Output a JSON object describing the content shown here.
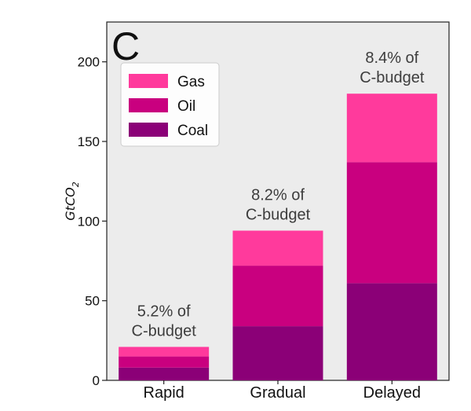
{
  "panel_letter": "C",
  "chart_data": {
    "type": "bar",
    "stacked": true,
    "categories": [
      "Rapid",
      "Gradual",
      "Delayed"
    ],
    "series": [
      {
        "name": "Coal",
        "values": [
          8,
          34,
          61
        ],
        "color": "#8b0077"
      },
      {
        "name": "Oil",
        "values": [
          7,
          38,
          76
        ],
        "color": "#c9007f"
      },
      {
        "name": "Gas",
        "values": [
          6,
          22,
          43
        ],
        "color": "#ff3a9c"
      }
    ],
    "annotations": [
      {
        "category": "Rapid",
        "lines": [
          "5.2% of",
          "C-budget"
        ]
      },
      {
        "category": "Gradual",
        "lines": [
          "8.2% of",
          "C-budget"
        ]
      },
      {
        "category": "Delayed",
        "lines": [
          "8.4% of",
          "C-budget"
        ]
      }
    ],
    "ylabel": "GtCO",
    "ylabel_subscript": "2",
    "ylim": [
      0,
      225
    ],
    "yticks": [
      "0",
      "50",
      "100",
      "150",
      "200"
    ],
    "legend_position": "top-left",
    "legend": [
      "Gas",
      "Oil",
      "Coal"
    ],
    "background_color": "#ececec"
  }
}
